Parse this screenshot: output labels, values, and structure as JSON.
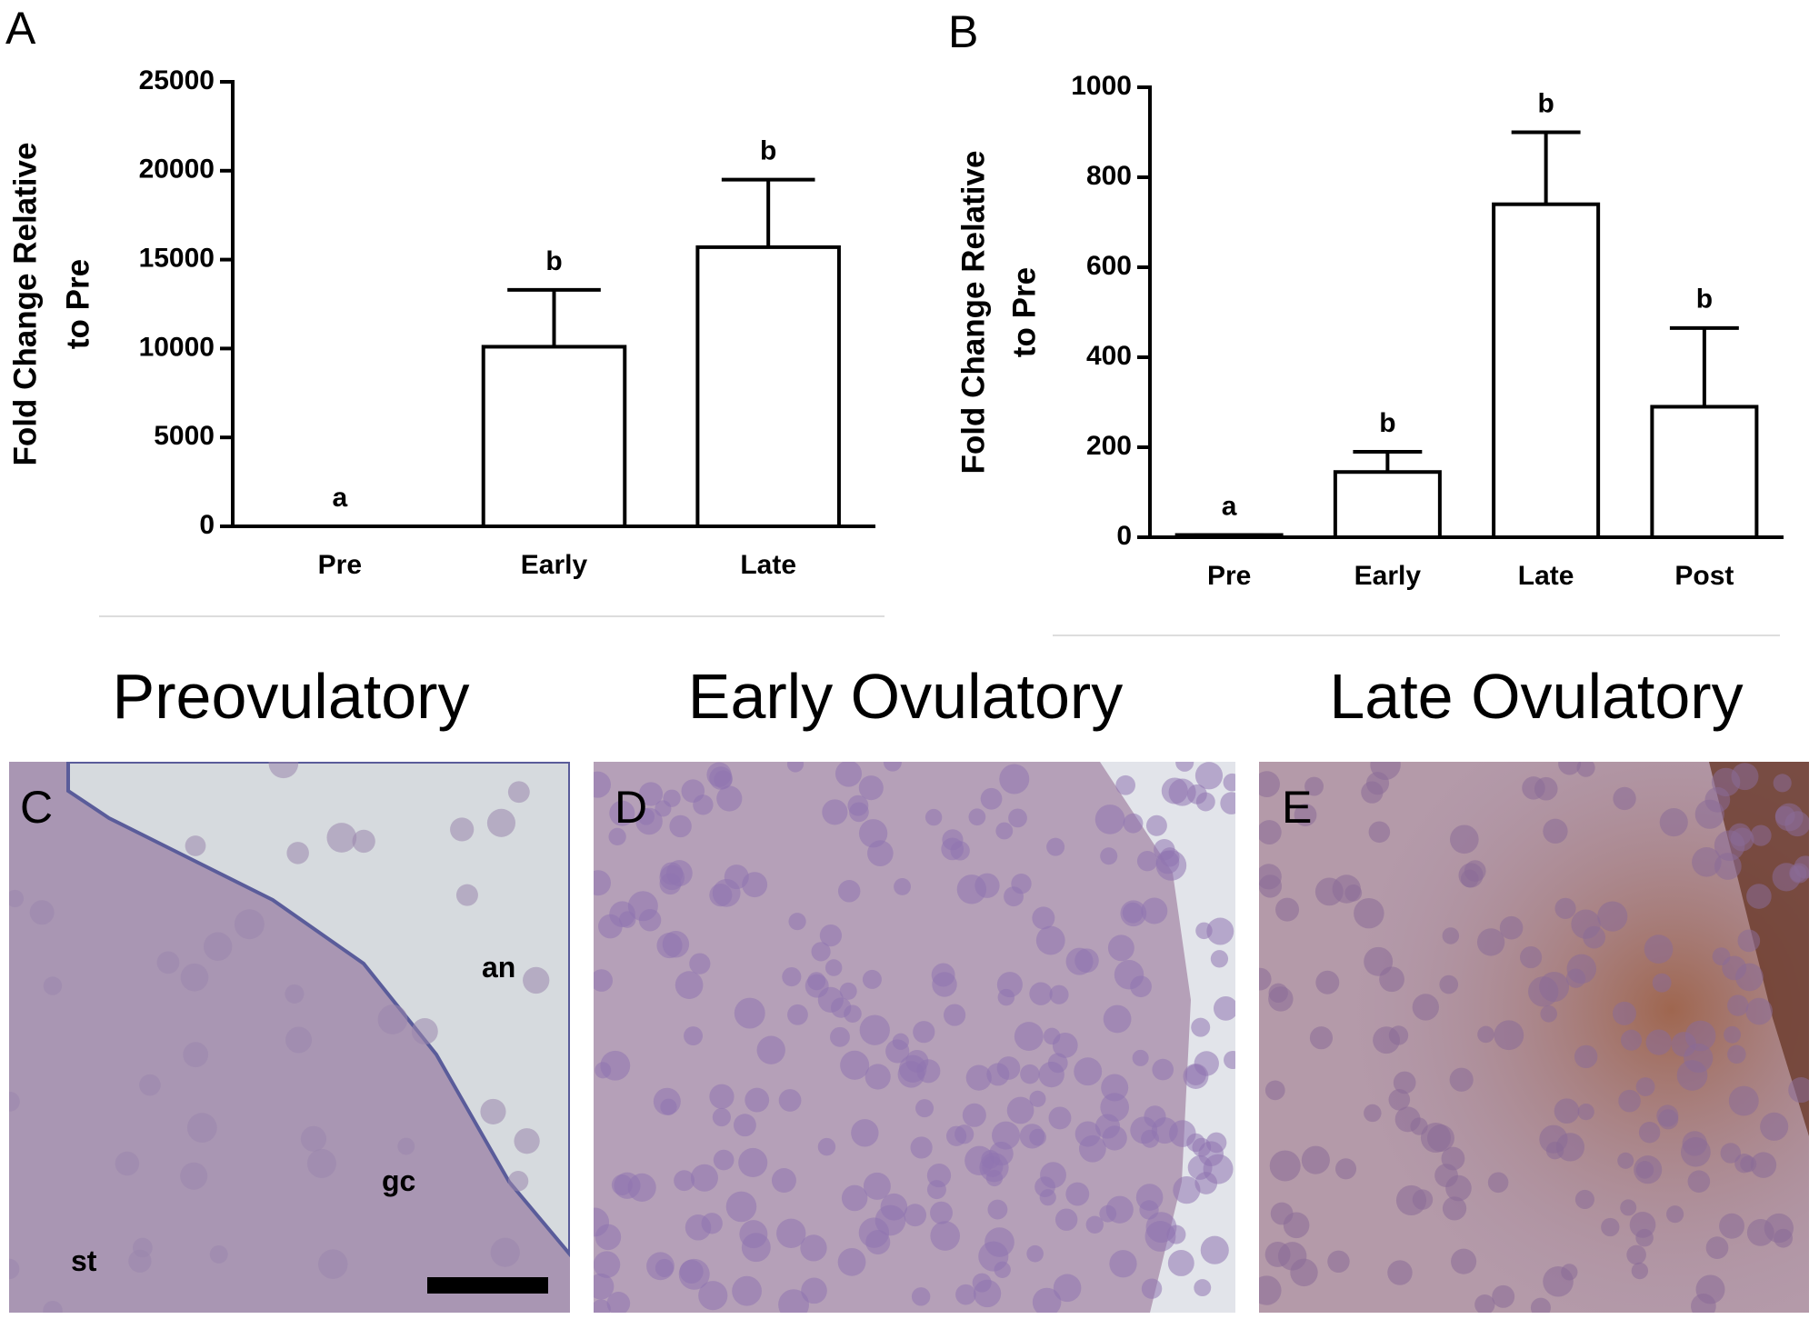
{
  "chart_data": [
    {
      "type": "bar",
      "panel_label": "A",
      "ylabel_lines": [
        "Fold Change Relative",
        "to Pre"
      ],
      "categories": [
        "Pre",
        "Early",
        "Late"
      ],
      "values": [
        0,
        10100,
        15700
      ],
      "errors": [
        0,
        3200,
        3800
      ],
      "significance_labels": [
        "a",
        "b",
        "b"
      ],
      "color": "#ffffff",
      "ylim": [
        0,
        25000
      ],
      "yticks": [
        0,
        5000,
        10000,
        15000,
        20000,
        25000
      ]
    },
    {
      "type": "bar",
      "panel_label": "B",
      "ylabel_lines": [
        "Fold Change Relative",
        "to Pre"
      ],
      "categories": [
        "Pre",
        "Early",
        "Late",
        "Post"
      ],
      "values": [
        5,
        145,
        740,
        290
      ],
      "errors": [
        0,
        45,
        160,
        175
      ],
      "significance_labels": [
        "a",
        "b",
        "b",
        "b"
      ],
      "color": "#ffffff",
      "ylim": [
        0,
        1000
      ],
      "yticks": [
        0,
        200,
        400,
        600,
        800,
        1000
      ]
    }
  ],
  "micrographs": [
    {
      "title": "Preovulatory",
      "label": "C",
      "annotations": [
        "an",
        "gc",
        "st"
      ]
    },
    {
      "title": "Early Ovulatory",
      "label": "D"
    },
    {
      "title": "Late Ovulatory",
      "label": "E"
    }
  ]
}
